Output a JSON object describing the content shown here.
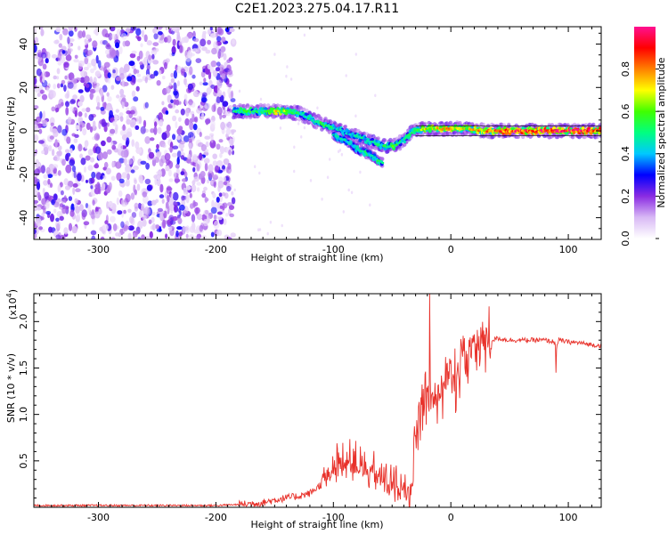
{
  "title": "C2E1.2023.275.04.17.R11",
  "chart_data": [
    {
      "type": "heatmap",
      "xlabel": "Height of straight line (km)",
      "ylabel": "Frequency (Hz)",
      "xlim": [
        -355,
        128
      ],
      "ylim": [
        -50,
        48
      ],
      "x_ticks": [
        -300,
        -200,
        -100,
        0,
        100
      ],
      "y_ticks": [
        -40,
        -20,
        0,
        20,
        40
      ],
      "grid": false,
      "colorbar": {
        "label": "Normalized spectral amplitude",
        "range": [
          0,
          1
        ],
        "ticks": [
          0.0,
          0.2,
          0.4,
          0.6,
          0.8
        ],
        "colormap": [
          "#ffffff",
          "#d8b8f5",
          "#8a2be2",
          "#0000ff",
          "#00c8ff",
          "#00ff80",
          "#40ff00",
          "#ffff00",
          "#ff8000",
          "#ff0000",
          "#ff1090"
        ]
      },
      "noise_region_x": [
        -355,
        -185
      ],
      "signal_ridge": [
        {
          "x": -185,
          "y": 9,
          "amp": 0.45
        },
        {
          "x": -175,
          "y": 9,
          "amp": 0.55
        },
        {
          "x": -160,
          "y": 9,
          "amp": 0.5
        },
        {
          "x": -150,
          "y": 9,
          "amp": 0.7
        },
        {
          "x": -140,
          "y": 9,
          "amp": 0.6
        },
        {
          "x": -128,
          "y": 8,
          "amp": 0.5
        },
        {
          "x": -118,
          "y": 5,
          "amp": 0.45
        },
        {
          "x": -108,
          "y": 3,
          "amp": 0.5
        },
        {
          "x": -98,
          "y": 1,
          "amp": 0.45
        },
        {
          "x": -88,
          "y": -1,
          "amp": 0.4
        },
        {
          "x": -78,
          "y": -3,
          "amp": 0.45
        },
        {
          "x": -68,
          "y": -5,
          "amp": 0.45
        },
        {
          "x": -58,
          "y": -7,
          "amp": 0.5
        },
        {
          "x": -48,
          "y": -7,
          "amp": 0.55
        },
        {
          "x": -40,
          "y": -4,
          "amp": 0.45
        },
        {
          "x": -32,
          "y": 0,
          "amp": 0.5
        },
        {
          "x": -22,
          "y": 1,
          "amp": 0.65
        },
        {
          "x": -10,
          "y": 1,
          "amp": 0.7
        },
        {
          "x": 0,
          "y": 1,
          "amp": 0.7
        },
        {
          "x": 15,
          "y": 1,
          "amp": 0.65
        },
        {
          "x": 30,
          "y": 0,
          "amp": 0.75
        },
        {
          "x": 50,
          "y": 0,
          "amp": 0.85
        },
        {
          "x": 70,
          "y": 0,
          "amp": 0.85
        },
        {
          "x": 90,
          "y": 0,
          "amp": 0.9
        },
        {
          "x": 110,
          "y": 0,
          "amp": 0.9
        },
        {
          "x": 128,
          "y": 0,
          "amp": 0.9
        }
      ],
      "secondary_branch": [
        {
          "x": -100,
          "y": -2,
          "amp": 0.4
        },
        {
          "x": -88,
          "y": -5,
          "amp": 0.45
        },
        {
          "x": -78,
          "y": -9,
          "amp": 0.45
        },
        {
          "x": -68,
          "y": -11,
          "amp": 0.45
        },
        {
          "x": -58,
          "y": -15,
          "amp": 0.5
        }
      ]
    },
    {
      "type": "line",
      "xlabel": "Height of straight line (km)",
      "ylabel": "SNR (10 * v/v)",
      "y_exponent_label": "(x10",
      "y_exponent": "4",
      "y_exponent_close": ")",
      "xlim": [
        -355,
        128
      ],
      "ylim": [
        0,
        2.3
      ],
      "x_ticks": [
        -300,
        -200,
        -100,
        0,
        100
      ],
      "y_ticks": [
        0.5,
        1.0,
        1.5,
        2.0
      ],
      "y_tick_labels": [
        "0.5",
        "1.0",
        "1.5",
        "2.0"
      ],
      "grid": false,
      "series": [
        {
          "color": "#e8312a",
          "x": [
            -355,
            -300,
            -250,
            -200,
            -180,
            -160,
            -150,
            -140,
            -130,
            -120,
            -115,
            -110,
            -105,
            -100,
            -95,
            -90,
            -85,
            -80,
            -75,
            -70,
            -65,
            -60,
            -55,
            -50,
            -45,
            -40,
            -35,
            -30,
            -28,
            -25,
            -22,
            -20,
            -18,
            -15,
            -12,
            -10,
            -8,
            -5,
            -2,
            0,
            3,
            6,
            10,
            15,
            20,
            25,
            30,
            35,
            40,
            50,
            60,
            70,
            80,
            88,
            90,
            92,
            100,
            110,
            120,
            128
          ],
          "y": [
            0.02,
            0.02,
            0.02,
            0.02,
            0.03,
            0.05,
            0.08,
            0.1,
            0.12,
            0.15,
            0.2,
            0.25,
            0.3,
            0.38,
            0.42,
            0.45,
            0.42,
            0.4,
            0.35,
            0.32,
            0.3,
            0.25,
            0.2,
            0.18,
            0.15,
            0.12,
            0.1,
            0.6,
            0.9,
            1.05,
            1.2,
            1.35,
            1.3,
            1.25,
            1.2,
            1.22,
            1.3,
            1.35,
            1.4,
            1.3,
            1.35,
            1.5,
            1.6,
            1.7,
            1.75,
            1.78,
            1.8,
            1.8,
            1.82,
            1.8,
            1.8,
            1.8,
            1.8,
            1.78,
            1.72,
            1.8,
            1.78,
            1.77,
            1.75,
            1.74
          ]
        }
      ]
    }
  ]
}
